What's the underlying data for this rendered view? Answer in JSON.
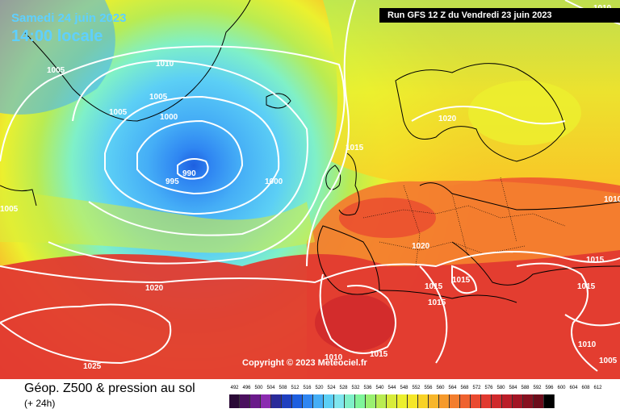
{
  "header": {
    "date": "Samedi 24 juin 2023",
    "local_time": "14:00 locale",
    "run": "Run GFS 12 Z du Vendredi 23 juin 2023"
  },
  "footer": {
    "product": "Géop. Z500 & pression au sol",
    "lead": "(+ 24h)",
    "copyright": "Copyright © 2023 Meteociel.fr"
  },
  "isobars": [
    "1010",
    "1005",
    "1010",
    "1005",
    "1005",
    "1000",
    "990",
    "995",
    "1000",
    "1015",
    "1020",
    "1005",
    "1020",
    "1020",
    "1015",
    "1015",
    "1015",
    "1015",
    "1025",
    "1010",
    "1015",
    "1010",
    "1015",
    "1005",
    "1010"
  ],
  "scale": {
    "labels": [
      "492",
      "496",
      "500",
      "504",
      "508",
      "512",
      "516",
      "520",
      "524",
      "528",
      "532",
      "536",
      "540",
      "544",
      "548",
      "552",
      "556",
      "560",
      "564",
      "568",
      "572",
      "576",
      "580",
      "584",
      "588",
      "592",
      "596",
      "600",
      "604",
      "608",
      "612"
    ],
    "colors": [
      "#2a0a36",
      "#4a0f5e",
      "#6a1a8a",
      "#8b2cb0",
      "#2a2a9a",
      "#1f3fbf",
      "#1e5fe0",
      "#2f86f2",
      "#45aef6",
      "#5ccff5",
      "#7fe6ee",
      "#7ff0c8",
      "#7ff59a",
      "#9af070",
      "#b9ec52",
      "#d8ec3a",
      "#ecf02e",
      "#f6e728",
      "#f9d226",
      "#f8b62a",
      "#f69a2c",
      "#f37e2e",
      "#ef622f",
      "#ea4a30",
      "#e13a30",
      "#d02a2c",
      "#bb1d28",
      "#a21524",
      "#87101f",
      "#6b0c1a",
      "#000000"
    ]
  },
  "colors": {
    "ocean_dark": "#1e5fe0",
    "cyan": "#45aef6",
    "green": "#7ff59a",
    "yellow": "#ecf02e",
    "orange": "#f37e2e",
    "red": "#e13a30"
  }
}
